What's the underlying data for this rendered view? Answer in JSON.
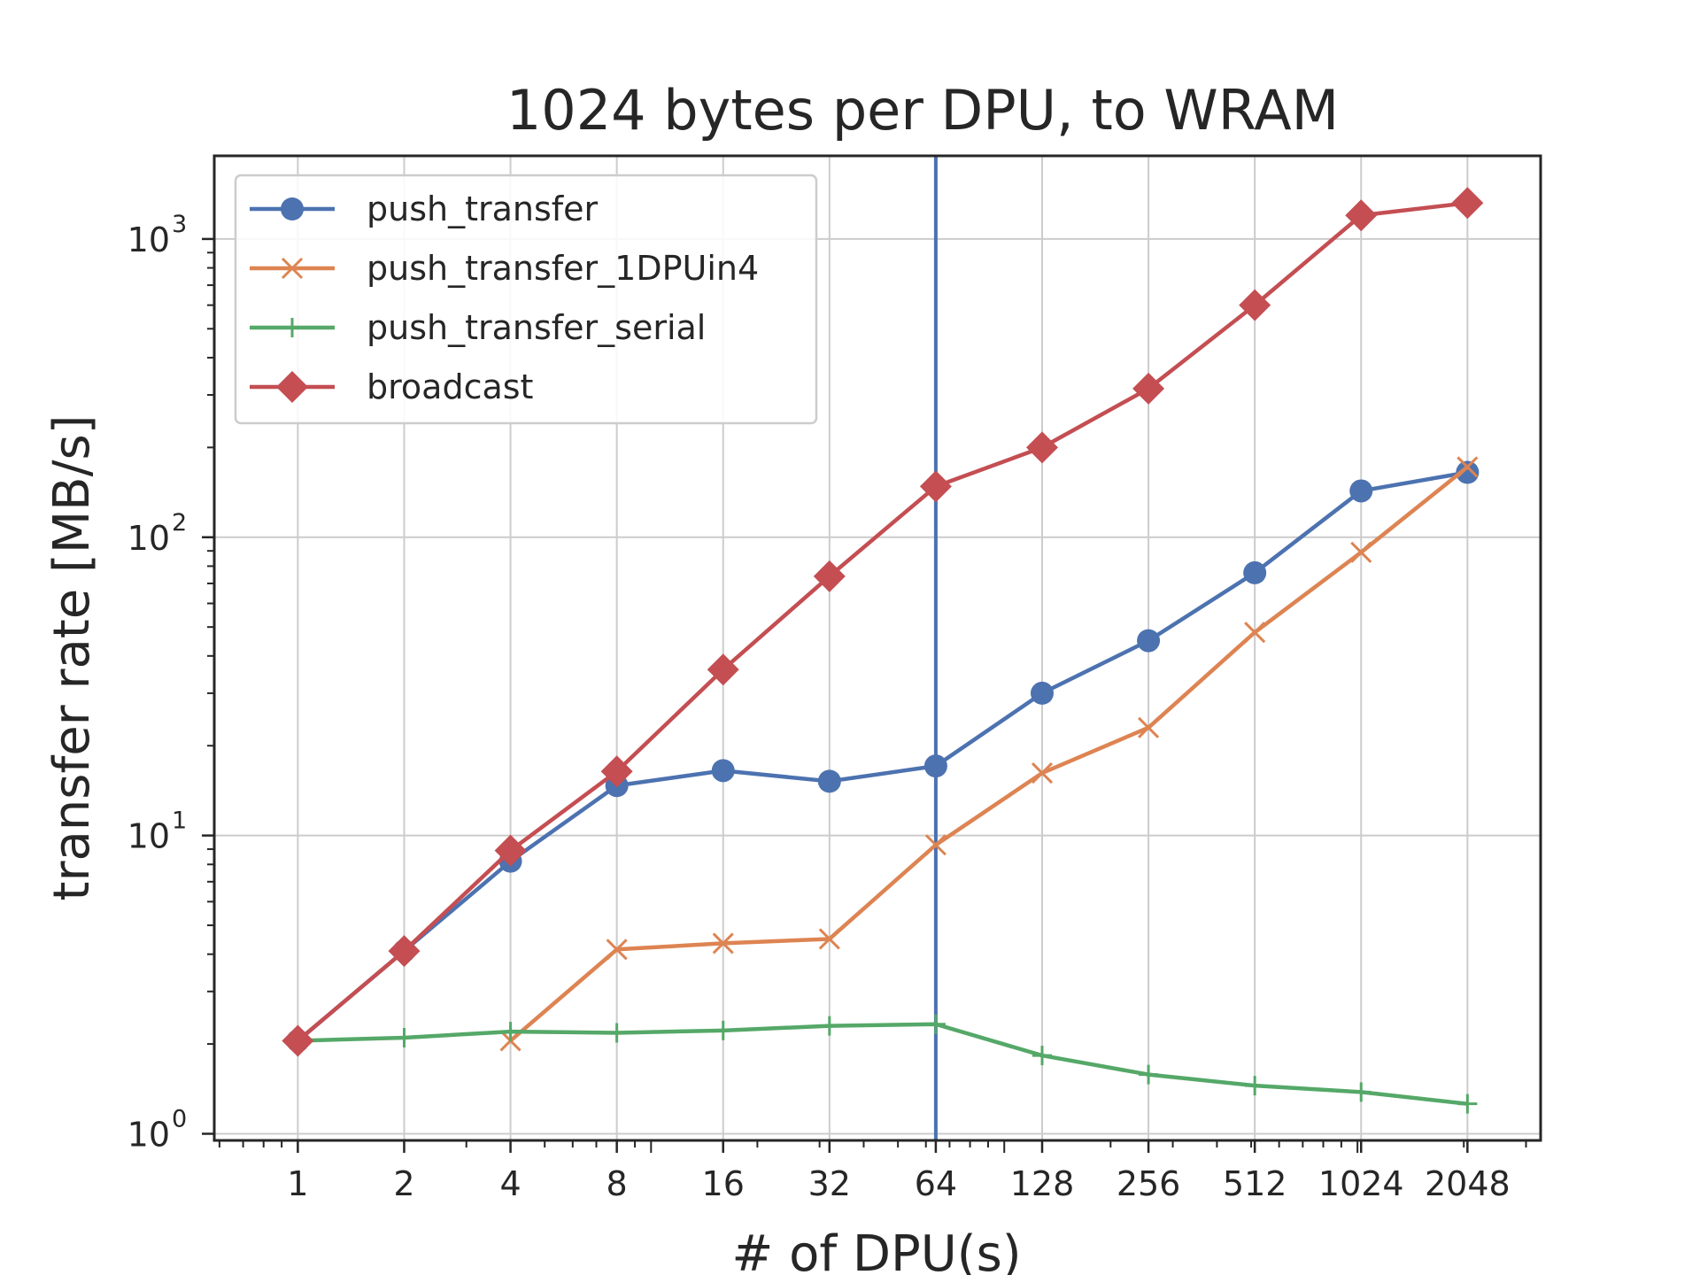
{
  "chart_data": {
    "type": "line",
    "title": "1024 bytes per DPU, to WRAM",
    "xlabel": "# of DPU(s)",
    "ylabel": "transfer rate [MB/s]",
    "x_scale": "log2",
    "y_scale": "log10",
    "x_ticks": [
      "1",
      "2",
      "4",
      "8",
      "16",
      "32",
      "64",
      "128",
      "256",
      "512",
      "1024",
      "2048"
    ],
    "y_ticks": [
      {
        "value": 1,
        "base": "10",
        "exp": "0"
      },
      {
        "value": 10,
        "base": "10",
        "exp": "1"
      },
      {
        "value": 100,
        "base": "10",
        "exp": "2"
      },
      {
        "value": 1000,
        "base": "10",
        "exp": "3"
      }
    ],
    "xlim": [
      0.58,
      3300
    ],
    "ylim": [
      0.95,
      1900
    ],
    "grid": true,
    "legend_position": "upper-left",
    "vertical_line": {
      "x": 64,
      "color": "#4c72b0"
    },
    "series": [
      {
        "name": "push_transfer",
        "color": "#4c72b0",
        "marker": "circle",
        "x": [
          1,
          2,
          4,
          8,
          16,
          32,
          64,
          128,
          256,
          512,
          1024,
          2048
        ],
        "values": [
          2.05,
          4.1,
          8.2,
          14.7,
          16.5,
          15.2,
          17.1,
          30,
          45,
          76,
          143,
          165
        ]
      },
      {
        "name": "push_transfer_1DPUin4",
        "color": "#dd8452",
        "marker": "x",
        "x": [
          4,
          8,
          16,
          32,
          64,
          128,
          256,
          512,
          1024,
          2048
        ],
        "values": [
          2.05,
          4.15,
          4.35,
          4.5,
          9.3,
          16.2,
          23,
          48,
          89,
          172
        ]
      },
      {
        "name": "push_transfer_serial",
        "color": "#55a868",
        "marker": "plus",
        "x": [
          1,
          2,
          4,
          8,
          16,
          32,
          64,
          128,
          256,
          512,
          1024,
          2048
        ],
        "values": [
          2.05,
          2.1,
          2.2,
          2.18,
          2.22,
          2.3,
          2.33,
          1.83,
          1.58,
          1.45,
          1.38,
          1.26
        ]
      },
      {
        "name": "broadcast",
        "color": "#c44e52",
        "marker": "diamond",
        "x": [
          1,
          2,
          4,
          8,
          16,
          32,
          64,
          128,
          256,
          512,
          1024,
          2048
        ],
        "values": [
          2.05,
          4.1,
          8.9,
          16.4,
          36,
          74,
          148,
          200,
          315,
          600,
          1200,
          1320
        ]
      }
    ]
  }
}
